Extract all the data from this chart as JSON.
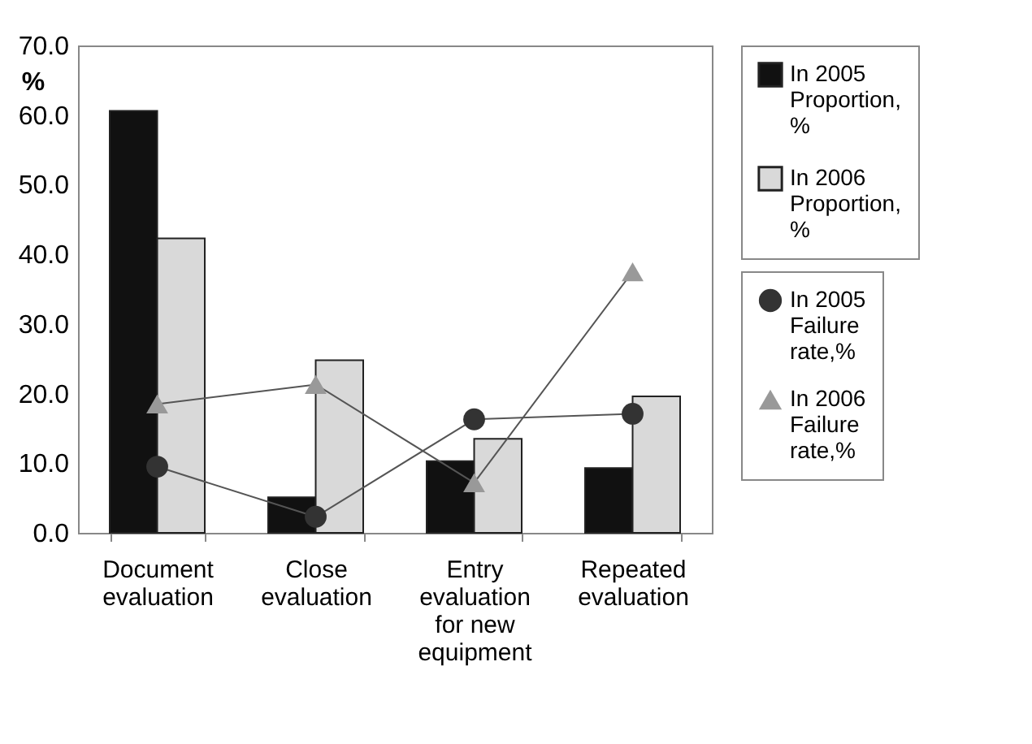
{
  "chart_data": {
    "type": "bar",
    "ylabel": "%",
    "categories": [
      "Document evaluation",
      "Close evaluation",
      "Entry evaluation for new equipment",
      "Repeated evaluation"
    ],
    "series": [
      {
        "name": "In 2005 Proportion, %",
        "color": "#111111",
        "values": [
          60.6,
          5.1,
          10.3,
          9.3
        ]
      },
      {
        "name": "In 2006 Proportion, %",
        "color": "#d9d9d9",
        "values": [
          42.3,
          24.8,
          13.5,
          19.6
        ]
      },
      {
        "name": "In 2005 Failure rate,%",
        "type": "line",
        "color": "#333333",
        "marker": "circle",
        "values": [
          9.5,
          2.3,
          16.3,
          17.1
        ]
      },
      {
        "name": "In 2006 Failure rate,%",
        "type": "line",
        "color": "#999999",
        "marker": "triangle",
        "values": [
          18.5,
          21.3,
          7.2,
          37.5
        ]
      }
    ],
    "ylim": [
      0,
      70
    ],
    "yticks": [
      {
        "value": 0,
        "label": "0.0"
      },
      {
        "value": 10,
        "label": "10.0"
      },
      {
        "value": 20,
        "label": "20.0"
      },
      {
        "value": 30,
        "label": "30.0"
      },
      {
        "value": 40,
        "label": "40.0"
      },
      {
        "value": 50,
        "label": "50.0"
      },
      {
        "value": 60,
        "label": "60.0"
      },
      {
        "value": 70,
        "label": "70.0"
      }
    ],
    "grid": false,
    "legend": "right",
    "line_style": "solid"
  }
}
